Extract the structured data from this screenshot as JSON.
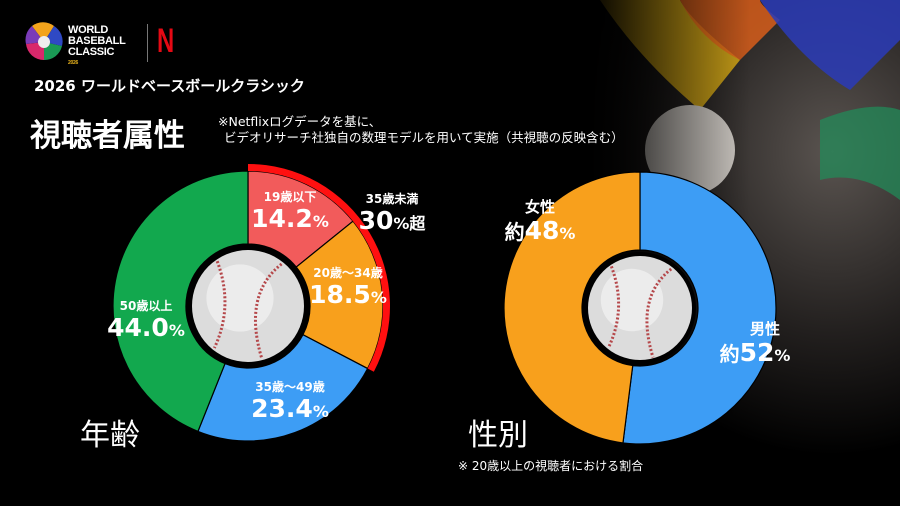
{
  "header": {
    "logo_text": [
      "WORLD",
      "BASEBALL",
      "CLASSIC"
    ],
    "logo_year": "2026",
    "partner_logo": "N",
    "subtitle": "2026 ワールドベースボールクラシック",
    "title": "視聴者属性",
    "note_line1": "※Netflixログデータを基に、",
    "note_line2": "ビデオリサーチ社独自の数理モデルを用いて実施（共視聴の反映含む）"
  },
  "chart_data": [
    {
      "type": "pie",
      "donut": true,
      "title": "年齢",
      "categories": [
        "19歳以下",
        "20歳～34歳",
        "35歳～49歳",
        "50歳以上"
      ],
      "values": [
        14.2,
        18.5,
        23.4,
        44.0
      ],
      "value_labels": [
        "14.2",
        "18.5",
        "23.4",
        "44.0"
      ],
      "unit": "%",
      "colors": [
        "#f25b5b",
        "#f8a01c",
        "#3d9df5",
        "#12a84e"
      ],
      "center_icon": "baseball-icon",
      "annotation": {
        "label": "35歳未満",
        "value": "30",
        "unit": "%",
        "suffix": "超",
        "color": "#ff1010",
        "covers": [
          "19歳以下",
          "20歳～34歳"
        ]
      }
    },
    {
      "type": "pie",
      "donut": true,
      "title": "性別",
      "categories": [
        "男性",
        "女性"
      ],
      "values": [
        52,
        48
      ],
      "value_prefix": "約",
      "value_labels": [
        "52",
        "48"
      ],
      "unit": "%",
      "colors": [
        "#3d9df5",
        "#f8a01c"
      ],
      "center_icon": "baseball-icon",
      "footnote": "※ 20歳以上の視聴者における割合"
    }
  ]
}
